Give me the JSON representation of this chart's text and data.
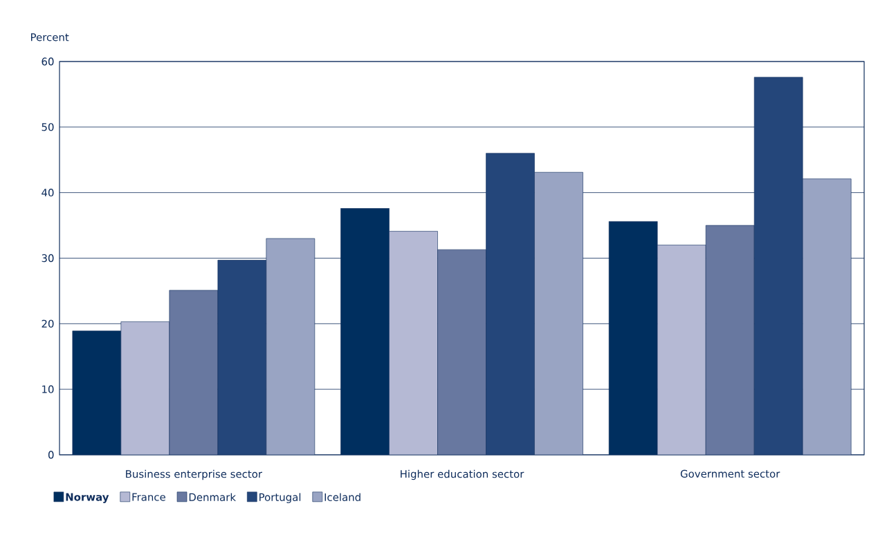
{
  "chart_data": {
    "type": "bar",
    "ylabel": "Percent",
    "categories": [
      "Business enterprise sector",
      "Higher education sector",
      "Government sector"
    ],
    "series": [
      {
        "name": "Norway",
        "color": "#002f5f",
        "values": [
          18.9,
          37.6,
          35.6
        ]
      },
      {
        "name": "France",
        "color": "#b5b9d4",
        "values": [
          20.3,
          34.1,
          32.0
        ]
      },
      {
        "name": "Denmark",
        "color": "#6878a0",
        "values": [
          25.1,
          31.3,
          35.0
        ]
      },
      {
        "name": "Portugal",
        "color": "#24467a",
        "values": [
          29.7,
          46.0,
          57.6
        ]
      },
      {
        "name": "Iceland",
        "color": "#99a4c3",
        "values": [
          33.0,
          43.1,
          42.1
        ]
      }
    ],
    "ylim": [
      0,
      60
    ],
    "yticks": [
      0,
      10,
      20,
      30,
      40,
      50,
      60
    ],
    "grid": "y",
    "legend": "bottom left"
  }
}
